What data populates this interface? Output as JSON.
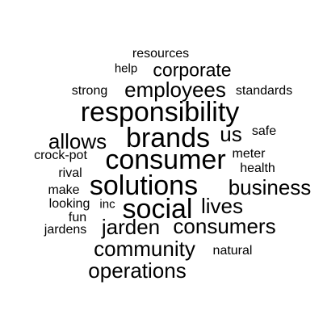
{
  "word_cloud": {
    "text_color": "#000000",
    "background_color": "#ffffff",
    "words": [
      {
        "text": "resources"
      },
      {
        "text": "help"
      },
      {
        "text": "corporate"
      },
      {
        "text": "strong"
      },
      {
        "text": "employees"
      },
      {
        "text": "standards"
      },
      {
        "text": "responsibility"
      },
      {
        "text": "allows"
      },
      {
        "text": "brands"
      },
      {
        "text": "us"
      },
      {
        "text": "safe"
      },
      {
        "text": "consumer"
      },
      {
        "text": "crock-pot"
      },
      {
        "text": "meter"
      },
      {
        "text": "health"
      },
      {
        "text": "rival"
      },
      {
        "text": "solutions"
      },
      {
        "text": "business"
      },
      {
        "text": "make"
      },
      {
        "text": "looking"
      },
      {
        "text": "inc"
      },
      {
        "text": "social"
      },
      {
        "text": "lives"
      },
      {
        "text": "fun"
      },
      {
        "text": "jarden"
      },
      {
        "text": "consumers"
      },
      {
        "text": "jardens"
      },
      {
        "text": "community"
      },
      {
        "text": "natural"
      },
      {
        "text": "operations"
      }
    ]
  }
}
